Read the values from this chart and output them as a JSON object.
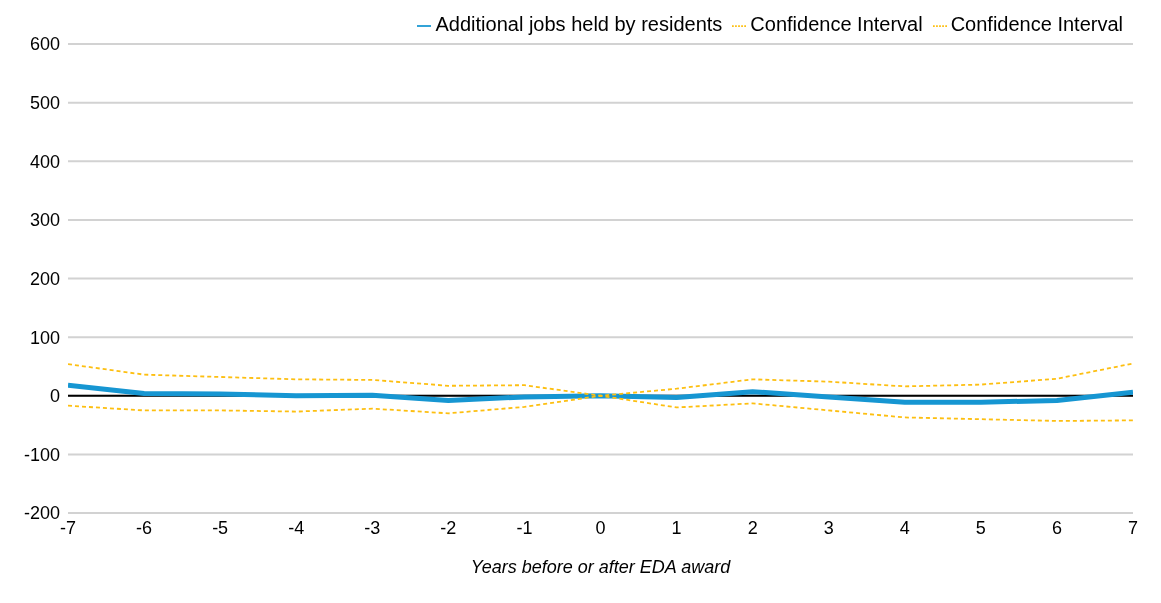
{
  "chart_data": {
    "type": "line",
    "xlabel": "Years before or after EDA award",
    "x": [
      -7,
      -6,
      -5,
      -4,
      -3,
      -2,
      -1,
      0,
      1,
      2,
      3,
      4,
      5,
      6,
      7
    ],
    "series": [
      {
        "name": "Additional jobs held by residents",
        "color": "#1696d2",
        "line_style": "solid",
        "values": [
          18,
          4,
          3,
          0,
          1,
          -8,
          -2,
          0,
          -3,
          7,
          -2,
          -11,
          -11,
          -8,
          6
        ]
      },
      {
        "name": "Confidence Interval",
        "color": "#fdbf11",
        "line_style": "dashed",
        "values": [
          54,
          36,
          32,
          28,
          27,
          17,
          18,
          0,
          12,
          28,
          24,
          16,
          19,
          29,
          55
        ]
      },
      {
        "name": "Confidence Interval",
        "color": "#fdbf11",
        "line_style": "dashed",
        "values": [
          -17,
          -25,
          -25,
          -27,
          -22,
          -30,
          -19,
          0,
          -20,
          -13,
          -25,
          -37,
          -40,
          -43,
          -42
        ]
      }
    ],
    "xlim": [
      -7,
      7
    ],
    "xticks": [
      -7,
      -6,
      -5,
      -4,
      -3,
      -2,
      -1,
      0,
      1,
      2,
      3,
      4,
      5,
      6,
      7
    ],
    "ylim": [
      -200,
      600
    ],
    "yticks": [
      -200,
      -100,
      0,
      100,
      200,
      300,
      400,
      500,
      600
    ],
    "grid": "y",
    "legend": "top",
    "marker": "none",
    "ref_lines": [
      {
        "axis": "y",
        "value": 0,
        "color": "#000000"
      }
    ]
  }
}
